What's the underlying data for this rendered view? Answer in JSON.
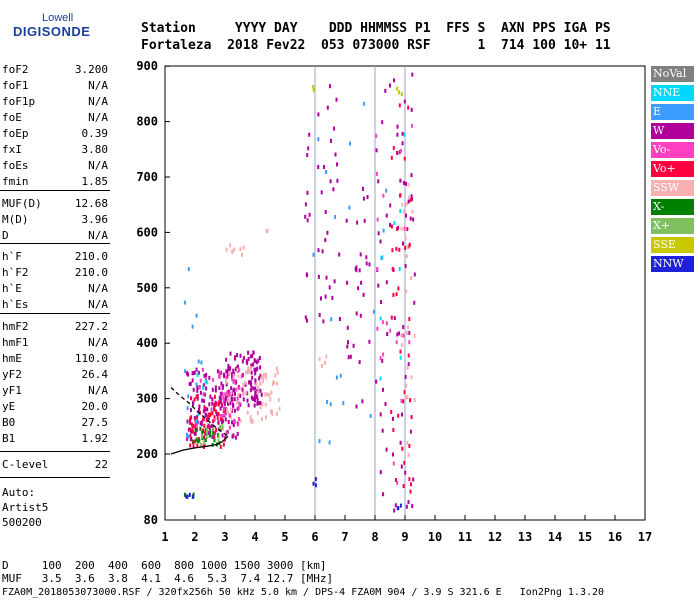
{
  "logo": {
    "line1": "Lowell",
    "line2": "DIGISONDE"
  },
  "header": {
    "line1": "Station     YYYY DAY    DDD HHMMSS P1  FFS S  AXN PPS IGA PS",
    "line2": "Fortaleza  2018 Fev22  053 073000 RSF      1  714 100 10+ 11"
  },
  "params": [
    {
      "name": "foF2",
      "value": "3.200"
    },
    {
      "name": "foF1",
      "value": "N/A"
    },
    {
      "name": "foF1p",
      "value": "N/A"
    },
    {
      "name": "foE",
      "value": "N/A"
    },
    {
      "name": "foEp",
      "value": "0.39"
    },
    {
      "name": "fxI",
      "value": "3.80"
    },
    {
      "name": "foEs",
      "value": "N/A"
    },
    {
      "name": "fmin",
      "value": "1.85"
    },
    {
      "name": "MUF(D)",
      "value": "12.68"
    },
    {
      "name": "M(D)",
      "value": "3.96"
    },
    {
      "name": "D",
      "value": "N/A"
    },
    {
      "name": "h`F",
      "value": "210.0"
    },
    {
      "name": "h`F2",
      "value": "210.0"
    },
    {
      "name": "h`E",
      "value": "N/A"
    },
    {
      "name": "h`Es",
      "value": "N/A"
    },
    {
      "name": "hmF2",
      "value": "227.2"
    },
    {
      "name": "hmF1",
      "value": "N/A"
    },
    {
      "name": "hmE",
      "value": "110.0"
    },
    {
      "name": "yF2",
      "value": "26.4"
    },
    {
      "name": "yF1",
      "value": "N/A"
    },
    {
      "name": "yE",
      "value": "20.0"
    },
    {
      "name": "B0",
      "value": "27.5"
    },
    {
      "name": "B1",
      "value": "1.92"
    },
    {
      "name": "C-level",
      "value": "22"
    }
  ],
  "auto": {
    "line1": "Auto:",
    "line2": "Artist5",
    "line3": "500200"
  },
  "footer": {
    "d_line": "D     100  200  400  600  800 1000 1500 3000 [km]",
    "muf_line": "MUF   3.5  3.6  3.8  4.1  4.6  5.3  7.4 12.7 [MHz]",
    "file_line": "FZA0M_2018053073000.RSF / 320fx256h 50 kHz 5.0 km / DPS-4 FZA0M 904 / 3.9 S 321.6 E   Ion2Png 1.3.20"
  },
  "legend": [
    {
      "label": "NoVal",
      "color": "#808080"
    },
    {
      "label": "NNE",
      "color": "#00d8ff"
    },
    {
      "label": "E",
      "color": "#3c9cff"
    },
    {
      "label": "W",
      "color": "#b0009c"
    },
    {
      "label": "Vo-",
      "color": "#ff40c0"
    },
    {
      "label": "Vo+",
      "color": "#ff0040"
    },
    {
      "label": "SSW",
      "color": "#f8b0b0"
    },
    {
      "label": "X-",
      "color": "#008000"
    },
    {
      "label": "X+",
      "color": "#80c060"
    },
    {
      "label": "SSE",
      "color": "#c8c800"
    },
    {
      "label": "NNW",
      "color": "#2020d8"
    }
  ],
  "chart_data": {
    "type": "scatter",
    "xlim": [
      1,
      17
    ],
    "ylim": [
      80,
      900
    ],
    "x_ticks": [
      1,
      2,
      3,
      4,
      5,
      6,
      7,
      8,
      9,
      10,
      11,
      12,
      13,
      14,
      15,
      16,
      17
    ],
    "y_ticks": [
      80,
      200,
      300,
      400,
      500,
      600,
      700,
      800,
      900
    ],
    "grid": false,
    "legend_position": "right",
    "vertical_lines": [
      6.0,
      8.0,
      9.0
    ],
    "trace_lines": [
      {
        "color": "#000000",
        "dashed": false,
        "points": [
          [
            1.2,
            200
          ],
          [
            1.6,
            207
          ],
          [
            2.0,
            211
          ],
          [
            2.4,
            214
          ],
          [
            2.7,
            217
          ],
          [
            2.9,
            222
          ],
          [
            3.1,
            232
          ]
        ]
      },
      {
        "color": "#000000",
        "dashed": true,
        "points": [
          [
            1.2,
            320
          ],
          [
            1.5,
            305
          ],
          [
            1.8,
            292
          ],
          [
            2.1,
            276
          ],
          [
            2.4,
            262
          ],
          [
            2.7,
            248
          ],
          [
            2.9,
            240
          ],
          [
            3.1,
            232
          ]
        ]
      }
    ],
    "series": [
      {
        "color": "#b0009c",
        "clusters": [
          {
            "x": [
              1.7,
              3.4
            ],
            "y": [
              230,
              360
            ],
            "n": 150
          },
          {
            "x": [
              3.0,
              4.2
            ],
            "y": [
              290,
              390
            ],
            "n": 90
          },
          {
            "x": [
              5.6,
              5.8
            ],
            "y": [
              300,
              890
            ],
            "n": 12
          },
          {
            "x": [
              6.0,
              6.8
            ],
            "y": [
              430,
              890
            ],
            "n": 30
          },
          {
            "x": [
              7.0,
              7.8
            ],
            "y": [
              280,
              690
            ],
            "n": 30
          },
          {
            "x": [
              8.0,
              9.3
            ],
            "y": [
              100,
              890
            ],
            "n": 70
          }
        ]
      },
      {
        "color": "#ff0040",
        "clusters": [
          {
            "x": [
              1.8,
              3.0
            ],
            "y": [
              215,
              310
            ],
            "n": 70
          },
          {
            "x": [
              8.5,
              9.2
            ],
            "y": [
              120,
              860
            ],
            "n": 40
          }
        ]
      },
      {
        "color": "#f8b0b0",
        "clusters": [
          {
            "x": [
              3.0,
              4.8
            ],
            "y": [
              260,
              360
            ],
            "n": 70
          },
          {
            "x": [
              3.0,
              3.6
            ],
            "y": [
              560,
              585
            ],
            "n": 8
          },
          {
            "x": [
              4.3,
              4.5
            ],
            "y": [
              600,
              610
            ],
            "n": 2
          },
          {
            "x": [
              8.8,
              9.3
            ],
            "y": [
              200,
              700
            ],
            "n": 25
          },
          {
            "x": [
              6.1,
              6.4
            ],
            "y": [
              350,
              380
            ],
            "n": 4
          }
        ]
      },
      {
        "color": "#ff40c0",
        "clusters": [
          {
            "x": [
              2.0,
              3.6
            ],
            "y": [
              240,
              360
            ],
            "n": 40
          },
          {
            "x": [
              8.0,
              9.2
            ],
            "y": [
              150,
              800
            ],
            "n": 20
          }
        ]
      },
      {
        "color": "#008000",
        "clusters": [
          {
            "x": [
              1.9,
              2.8
            ],
            "y": [
              220,
              250
            ],
            "n": 20
          },
          {
            "x": [
              1.6,
              2.0
            ],
            "y": [
              125,
              130
            ],
            "n": 4
          }
        ]
      },
      {
        "color": "#80c060",
        "clusters": [
          {
            "x": [
              2.1,
              2.9
            ],
            "y": [
              220,
              255
            ],
            "n": 14
          }
        ]
      },
      {
        "color": "#3c9cff",
        "clusters": [
          {
            "x": [
              1.6,
              2.2
            ],
            "y": [
              230,
              545
            ],
            "n": 12
          },
          {
            "x": [
              5.8,
              9.2
            ],
            "y": [
              140,
              890
            ],
            "n": 20
          }
        ]
      },
      {
        "color": "#00d8ff",
        "clusters": [
          {
            "x": [
              2.0,
              2.4
            ],
            "y": [
              250,
              360
            ],
            "n": 6
          },
          {
            "x": [
              7.8,
              9.0
            ],
            "y": [
              300,
              800
            ],
            "n": 8
          }
        ]
      },
      {
        "color": "#2020d8",
        "clusters": [
          {
            "x": [
              1.6,
              2.0
            ],
            "y": [
              125,
              130
            ],
            "n": 4
          },
          {
            "x": [
              5.9,
              6.0
            ],
            "y": [
              140,
              160
            ],
            "n": 3
          },
          {
            "x": [
              8.7,
              8.9
            ],
            "y": [
              100,
              120
            ],
            "n": 3
          }
        ]
      },
      {
        "color": "#c8c800",
        "clusters": [
          {
            "x": [
              8.7,
              8.9
            ],
            "y": [
              840,
              870
            ],
            "n": 3
          },
          {
            "x": [
              5.9,
              6.0
            ],
            "y": [
              860,
              870
            ],
            "n": 2
          }
        ]
      }
    ]
  }
}
